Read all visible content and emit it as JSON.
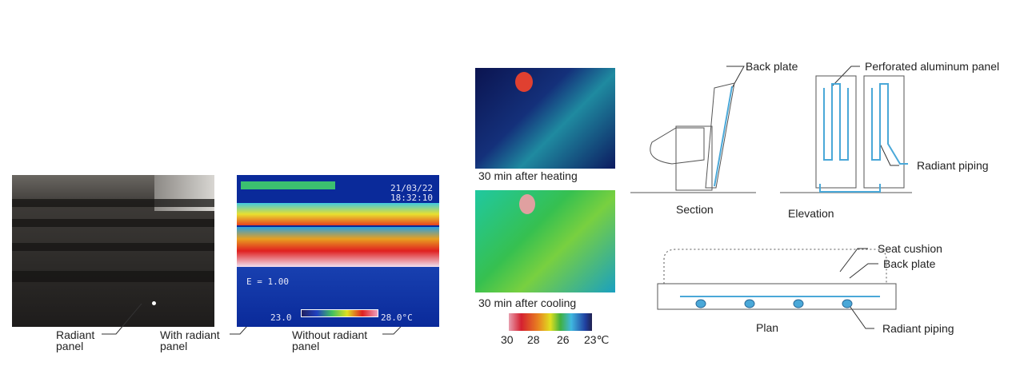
{
  "photo": {
    "label_radiant_panel": [
      "Radiant",
      "panel"
    ]
  },
  "thermal_seats": {
    "date": "21/03/22",
    "time": "18:32:10",
    "emissivity": "E = 1.00",
    "scale_min": "23.0",
    "scale_max": "28.0°C",
    "label_with": [
      "With radiant",
      "panel"
    ],
    "label_without": [
      "Without radiant",
      "panel"
    ]
  },
  "thermal_person": {
    "heating_caption": "30 min after heating",
    "cooling_caption": "30 min after cooling",
    "scale_ticks": [
      "30",
      "28",
      "26",
      "23℃"
    ]
  },
  "drawings": {
    "back_plate": "Back plate",
    "perforated_panel": "Perforated aluminum panel",
    "radiant_piping": "Radiant piping",
    "section": "Section",
    "elevation": "Elevation",
    "seat_cushion": "Seat cushion",
    "plan_back_plate": "Back plate",
    "plan": "Plan",
    "plan_radiant_piping": "Radiant piping"
  },
  "colors": {
    "pipe": "#4aa8d8"
  }
}
